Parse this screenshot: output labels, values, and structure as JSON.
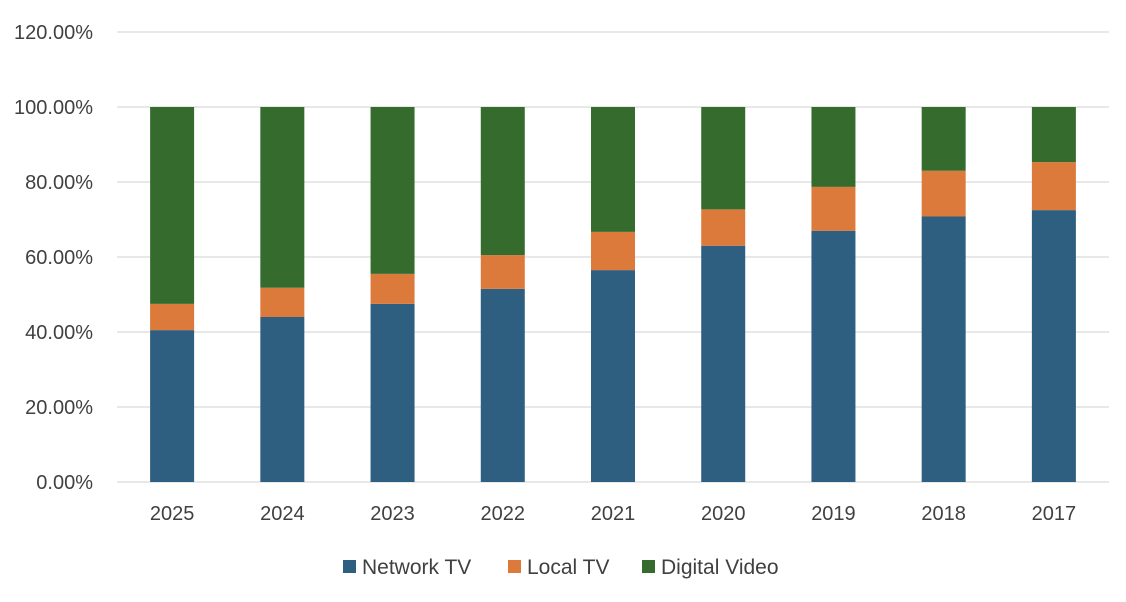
{
  "chart_data": {
    "type": "bar",
    "stacked": true,
    "categories": [
      "2025",
      "2024",
      "2023",
      "2022",
      "2021",
      "2020",
      "2019",
      "2018",
      "2017"
    ],
    "series": [
      {
        "name": "Network TV",
        "color": "#2e5f80",
        "values": [
          40.5,
          44.0,
          47.5,
          51.5,
          56.5,
          63.0,
          67.0,
          70.8,
          72.5
        ]
      },
      {
        "name": "Local TV",
        "color": "#dc7a3c",
        "values": [
          7.0,
          7.8,
          8.0,
          9.0,
          10.2,
          9.7,
          11.7,
          12.2,
          12.8
        ]
      },
      {
        "name": "Digital Video",
        "color": "#356c2e",
        "values": [
          52.5,
          48.2,
          44.5,
          39.5,
          33.3,
          27.3,
          21.3,
          17.0,
          14.7
        ]
      }
    ],
    "ylim": [
      0,
      120
    ],
    "yticks": [
      "0.00%",
      "20.00%",
      "40.00%",
      "60.00%",
      "80.00%",
      "100.00%",
      "120.00%"
    ],
    "ytick_values": [
      0,
      20,
      40,
      60,
      80,
      100,
      120
    ],
    "title": "",
    "xlabel": "",
    "ylabel": "",
    "grid": true,
    "gridline_color": "#d9d9d9",
    "legend_position": "bottom"
  }
}
